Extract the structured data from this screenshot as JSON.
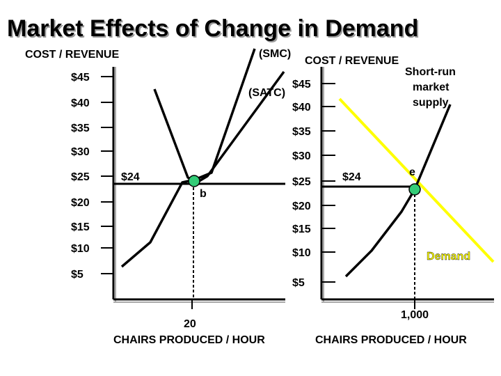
{
  "title": "Market Effects of Change in Demand",
  "chart_data": [
    {
      "type": "line",
      "name": "firm",
      "ylabel": "COST / REVENUE",
      "xlabel": "CHAIRS PRODUCED  / HOUR",
      "y_ticks": [
        "$45",
        "$40",
        "$35",
        "$30",
        "$25",
        "$20",
        "$15",
        "$10",
        "$5"
      ],
      "x_tick": "20",
      "curve_labels": {
        "smc": "(SMC)",
        "satc": "(SATC)"
      },
      "price_label": "$24",
      "point_label": "b",
      "price": 24,
      "quantity": 20
    },
    {
      "type": "line",
      "name": "market",
      "ylabel": "COST / REVENUE",
      "xlabel": "CHAIRS PRODUCED  / HOUR",
      "y_ticks": [
        "$45",
        "$40",
        "$35",
        "$30",
        "$25",
        "$20",
        "$15",
        "$10",
        "$5"
      ],
      "x_tick": "1,000",
      "supply_label": "Short-run\nmarket\nsupply",
      "supply_lines": [
        "Short-run",
        "market",
        "supply"
      ],
      "demand_label": "Demand",
      "price_label": "$24",
      "point_label": "e",
      "price": 24,
      "quantity": 1000
    }
  ],
  "colors": {
    "demand": "#ffff00",
    "point": "#33cc77",
    "demand_text": "#ffff00"
  }
}
